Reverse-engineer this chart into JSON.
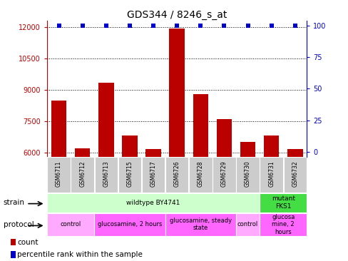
{
  "title": "GDS344 / 8246_s_at",
  "samples": [
    "GSM6711",
    "GSM6712",
    "GSM6713",
    "GSM6715",
    "GSM6717",
    "GSM6726",
    "GSM6728",
    "GSM6729",
    "GSM6730",
    "GSM6731",
    "GSM6732"
  ],
  "counts": [
    8500,
    6200,
    9350,
    6800,
    6150,
    11950,
    8800,
    7600,
    6500,
    6800,
    6150
  ],
  "percentiles": [
    100,
    100,
    100,
    100,
    100,
    100,
    100,
    100,
    100,
    100,
    100
  ],
  "ylim_left": [
    5800,
    12300
  ],
  "ylim_right": [
    -3.5,
    103.5
  ],
  "yticks_left": [
    6000,
    7500,
    9000,
    10500,
    12000
  ],
  "yticks_right": [
    0,
    25,
    50,
    75,
    100
  ],
  "bar_color": "#bb0000",
  "dot_color": "#0000cc",
  "strain_groups": [
    {
      "label": "wildtype BY4741",
      "start": 0,
      "end": 9,
      "color": "#ccffcc"
    },
    {
      "label": "mutant\nFKS1",
      "start": 9,
      "end": 11,
      "color": "#44dd44"
    }
  ],
  "protocol_groups": [
    {
      "label": "control",
      "start": 0,
      "end": 2,
      "color": "#ffaaff"
    },
    {
      "label": "glucosamine, 2 hours",
      "start": 2,
      "end": 5,
      "color": "#ff66ff"
    },
    {
      "label": "glucosamine, steady\nstate",
      "start": 5,
      "end": 8,
      "color": "#ff66ff"
    },
    {
      "label": "control",
      "start": 8,
      "end": 9,
      "color": "#ffaaff"
    },
    {
      "label": "glucosa\nmine, 2\nhours",
      "start": 9,
      "end": 11,
      "color": "#ff66ff"
    }
  ],
  "legend_items": [
    {
      "color": "#bb0000",
      "label": "count"
    },
    {
      "color": "#0000cc",
      "label": "percentile rank within the sample"
    }
  ],
  "background_color": "#ffffff",
  "left_axis_color": "#bb0000",
  "right_axis_color": "#0000cc",
  "sample_box_color": "#cccccc",
  "title_fontsize": 10,
  "axis_fontsize": 7,
  "label_fontsize": 7,
  "protocol_fontsize": 6
}
